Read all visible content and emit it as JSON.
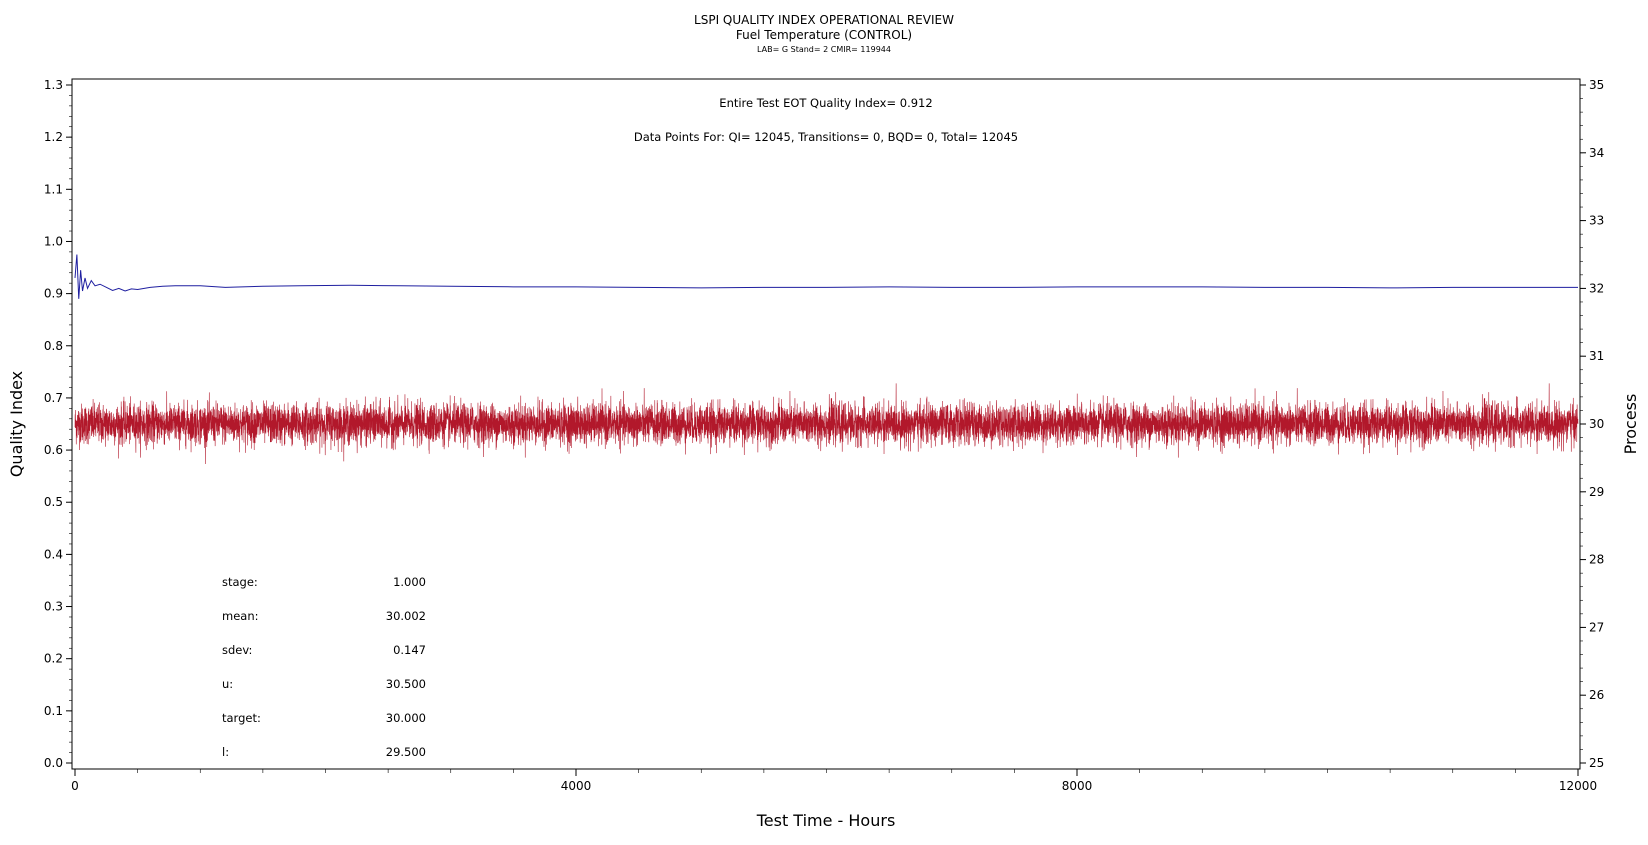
{
  "chart_data": {
    "type": "line",
    "title": "LSPI QUALITY INDEX OPERATIONAL REVIEW",
    "subtitle": "Fuel Temperature (CONTROL)",
    "subtitle2": "LAB= G Stand= 2 CMIR= 119944",
    "xlabel": "Test Time - Hours",
    "ylabel": "Quality Index",
    "y2label": "Process",
    "xlim": [
      0,
      12000
    ],
    "ylim": [
      0.0,
      1.3
    ],
    "y2lim": [
      25,
      35
    ],
    "x_ticks": [
      0,
      4000,
      8000,
      12000
    ],
    "y_ticks": [
      "0.0",
      "0.1",
      "0.2",
      "0.3",
      "0.4",
      "0.5",
      "0.6",
      "0.7",
      "0.8",
      "0.9",
      "1.0",
      "1.1",
      "1.2",
      "1.3"
    ],
    "y2_ticks": [
      "25",
      "26",
      "27",
      "28",
      "29",
      "30",
      "31",
      "32",
      "33",
      "34",
      "35"
    ],
    "annotations": {
      "eot": "Entire Test EOT Quality Index=   0.912",
      "points": "Data Points For: QI= 12045, Transitions=      0, BQD=      0, Total= 12045"
    },
    "stats": [
      {
        "label": "stage:",
        "value": "1.000"
      },
      {
        "label": "mean:",
        "value": "30.002"
      },
      {
        "label": "sdev:",
        "value": "0.147"
      },
      {
        "label": "u:",
        "value": "30.500"
      },
      {
        "label": "target:",
        "value": "30.000"
      },
      {
        "label": "l:",
        "value": "29.500"
      }
    ],
    "series": [
      {
        "axis": "left",
        "color": "#1f1fa0",
        "x": [
          0,
          15,
          30,
          45,
          60,
          80,
          100,
          130,
          160,
          200,
          250,
          300,
          350,
          400,
          450,
          500,
          600,
          700,
          800,
          1000,
          1200,
          1500,
          1800,
          2200,
          2600,
          3000,
          3500,
          4000,
          4500,
          5000,
          5500,
          6000,
          6500,
          7000,
          7500,
          8000,
          8500,
          9000,
          9500,
          10000,
          10500,
          11000,
          11500,
          12000
        ],
        "values": [
          0.93,
          0.975,
          0.89,
          0.945,
          0.905,
          0.93,
          0.91,
          0.925,
          0.915,
          0.918,
          0.912,
          0.906,
          0.91,
          0.905,
          0.909,
          0.908,
          0.912,
          0.914,
          0.915,
          0.915,
          0.912,
          0.914,
          0.915,
          0.916,
          0.915,
          0.914,
          0.913,
          0.913,
          0.912,
          0.911,
          0.912,
          0.912,
          0.913,
          0.912,
          0.912,
          0.913,
          0.913,
          0.913,
          0.912,
          0.912,
          0.911,
          0.912,
          0.912,
          0.912
        ]
      },
      {
        "axis": "right",
        "color": "#b2182b",
        "mean": 30.002,
        "sdev": 0.147,
        "count": 12045,
        "range": [
          29.2,
          30.6
        ]
      }
    ]
  }
}
